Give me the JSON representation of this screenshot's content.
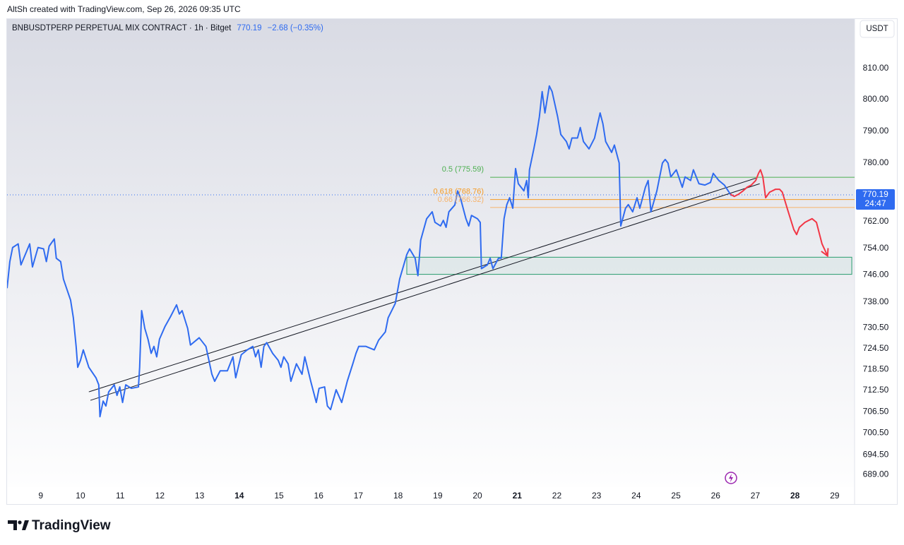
{
  "chart_data": {
    "type": "line",
    "credit": "AltSh created with TradingView.com, Sep 26, 2026 09:35 UTC",
    "title": "BNBUSDTPERP PERPETUAL MIX CONTRACT · 1h · Bitget",
    "last_price": 770.19,
    "change_label": "−2.68 (−0.35%)",
    "countdown": "24:47",
    "currency": "USDT",
    "brand": "TradingView",
    "ylog": true,
    "xlim": [
      8.15,
      29.5
    ],
    "ylim": [
      681,
      826
    ],
    "xticks": [
      9,
      10,
      11,
      12,
      13,
      14,
      15,
      16,
      17,
      18,
      19,
      20,
      21,
      22,
      23,
      24,
      25,
      26,
      27,
      28,
      29
    ],
    "xticks_bold": [
      14,
      21,
      28
    ],
    "yticks": [
      {
        "value": 810,
        "label": "810.00"
      },
      {
        "value": 800,
        "label": "800.00"
      },
      {
        "value": 790,
        "label": "790.00"
      },
      {
        "value": 780,
        "label": "780.00"
      },
      {
        "value": 762,
        "label": "762.00"
      },
      {
        "value": 754,
        "label": "754.00"
      },
      {
        "value": 746,
        "label": "746.00"
      },
      {
        "value": 738,
        "label": "738.00"
      },
      {
        "value": 730.5,
        "label": "730.50"
      },
      {
        "value": 724.5,
        "label": "724.50"
      },
      {
        "value": 718.5,
        "label": "718.50"
      },
      {
        "value": 712.5,
        "label": "712.50"
      },
      {
        "value": 706.5,
        "label": "706.50"
      },
      {
        "value": 700.5,
        "label": "700.50"
      },
      {
        "value": 694.5,
        "label": "694.50"
      },
      {
        "value": 689,
        "label": "689.00"
      }
    ],
    "series": [
      {
        "color": "#2f6bf0",
        "x": [
          8.15,
          8.22,
          8.29,
          8.43,
          8.5,
          8.72,
          8.79,
          8.93,
          9.07,
          9.14,
          9.21,
          9.34,
          9.39,
          9.5,
          9.57,
          9.75,
          9.82,
          9.89,
          9.93,
          10.0,
          10.07,
          10.21,
          10.39,
          10.46,
          10.49,
          10.57,
          10.64,
          10.71,
          10.85,
          10.92,
          10.99,
          11.06,
          11.14,
          11.28,
          11.46,
          11.49,
          11.54,
          11.62,
          11.7,
          11.78,
          11.85,
          11.92,
          11.99,
          12.13,
          12.27,
          12.42,
          12.49,
          12.56,
          12.7,
          12.77,
          12.99,
          13.16,
          13.31,
          13.38,
          13.52,
          13.7,
          13.84,
          13.91,
          14.05,
          14.2,
          14.34,
          14.41,
          14.48,
          14.55,
          14.62,
          14.69,
          14.84,
          14.98,
          15.05,
          15.12,
          15.23,
          15.3,
          15.44,
          15.58,
          15.65,
          15.8,
          15.94,
          16.01,
          16.15,
          16.22,
          16.3,
          16.44,
          16.58,
          16.72,
          16.86,
          16.94,
          17.01,
          17.19,
          17.4,
          17.51,
          17.68,
          17.75,
          17.93,
          18.04,
          18.22,
          18.29,
          18.43,
          18.5,
          18.57,
          18.72,
          18.86,
          18.93,
          19.07,
          19.14,
          19.21,
          19.28,
          19.43,
          19.5,
          19.57,
          19.71,
          19.78,
          19.85,
          20.0,
          20.07,
          20.1,
          20.25,
          20.32,
          20.39,
          20.53,
          20.6,
          20.67,
          20.74,
          20.81,
          20.89,
          20.96,
          21.03,
          21.17,
          21.24,
          21.28,
          21.31,
          21.42,
          21.49,
          21.56,
          21.63,
          21.7,
          21.81,
          21.88,
          22.02,
          22.1,
          22.24,
          22.31,
          22.38,
          22.52,
          22.59,
          22.67,
          22.81,
          22.95,
          23.09,
          23.16,
          23.23,
          23.38,
          23.45,
          23.57,
          23.61,
          23.73,
          23.8,
          23.91,
          24.02,
          24.09,
          24.23,
          24.3,
          24.37,
          24.52,
          24.66,
          24.73,
          24.8,
          24.87,
          25.01,
          25.16,
          25.23,
          25.37,
          25.44,
          25.58,
          25.73,
          25.87,
          25.94,
          26.08,
          26.22,
          26.37,
          26.4
        ],
        "values": [
          742.1,
          750.0,
          754.2,
          755.3,
          749.0,
          755.3,
          748.4,
          754.2,
          753.8,
          750.0,
          754.6,
          756.8,
          751.0,
          750.0,
          744.8,
          738.6,
          733.4,
          725.1,
          719.1,
          721.1,
          724.1,
          719.1,
          716.1,
          714.1,
          705.1,
          709.5,
          708.1,
          712.1,
          714.1,
          711.1,
          713.5,
          709.1,
          714.1,
          713.1,
          713.5,
          719.1,
          735.5,
          730.3,
          727.2,
          723.1,
          725.1,
          722.1,
          727.2,
          730.9,
          733.8,
          737.2,
          734.5,
          735.5,
          730.3,
          725.5,
          727.6,
          725.1,
          717.1,
          715.1,
          718.1,
          718.1,
          722.1,
          716.1,
          722.7,
          724.1,
          725.1,
          722.1,
          724.1,
          719.1,
          725.1,
          726.2,
          723.1,
          721.1,
          719.1,
          722.1,
          720.1,
          715.1,
          720.1,
          717.1,
          722.1,
          715.1,
          709.1,
          713.1,
          713.5,
          708.1,
          707.1,
          712.7,
          709.1,
          715.1,
          720.1,
          723.1,
          725.1,
          725.1,
          724.1,
          726.9,
          729.3,
          733.4,
          737.6,
          744.8,
          752.1,
          753.8,
          751.0,
          745.8,
          756.4,
          762.9,
          765.0,
          761.8,
          760.7,
          762.4,
          760.3,
          765.0,
          767.1,
          771.4,
          769.3,
          762.9,
          760.7,
          763.9,
          762.9,
          761.8,
          747.9,
          749.0,
          751.0,
          747.9,
          751.0,
          751.0,
          762.9,
          767.2,
          769.3,
          766.1,
          778.3,
          773.6,
          771.4,
          774.6,
          769.3,
          777.9,
          784.4,
          788.9,
          794.5,
          802.5,
          795.7,
          804.3,
          802.5,
          794.5,
          788.9,
          786.7,
          784.4,
          787.8,
          787.8,
          791.1,
          786.7,
          784.4,
          787.8,
          795.7,
          792.3,
          786.7,
          783.3,
          785.6,
          780.0,
          760.7,
          766.1,
          767.2,
          765.0,
          769.3,
          766.1,
          772.5,
          774.6,
          765.0,
          771.4,
          780.0,
          781.1,
          780.0,
          775.7,
          777.9,
          772.5,
          775.7,
          774.6,
          777.9,
          773.6,
          773.2,
          774.0,
          776.8,
          774.6,
          773.2,
          770.4,
          769.9
        ]
      },
      {
        "color": "#f23645",
        "x": [
          26.37,
          26.47,
          26.58,
          26.69,
          26.79,
          26.9,
          27.01,
          27.08,
          27.13,
          27.19,
          27.26,
          27.36,
          27.51,
          27.61,
          27.68,
          27.83,
          27.97,
          28.04,
          28.11,
          28.25,
          28.43,
          28.54,
          28.68,
          28.82
        ],
        "values": [
          770.4,
          769.7,
          770.4,
          771.4,
          772.5,
          773.2,
          774.6,
          776.8,
          777.9,
          775.7,
          769.3,
          771.0,
          771.9,
          771.9,
          771.0,
          765.0,
          759.6,
          758.1,
          760.3,
          761.8,
          762.9,
          761.8,
          755.3,
          751.7
        ]
      }
    ],
    "trendlines": [
      {
        "color": "#131722",
        "x": [
          10.21,
          27.01
        ],
        "values": [
          712.1,
          775.3
        ]
      },
      {
        "color": "#131722",
        "x": [
          10.25,
          27.11
        ],
        "values": [
          709.7,
          773.6
        ]
      }
    ],
    "fib_levels": [
      {
        "label": "0.5 (775.59)",
        "price": 775.59,
        "color": "#4caf50"
      },
      {
        "label": "0.618 (768.76)",
        "price": 768.76,
        "color": "#f59a23"
      },
      {
        "label": "0.66 (766.32)",
        "price": 766.32,
        "color": "#f7b36b"
      }
    ],
    "fib_start": 20.32,
    "zone": {
      "color": "#2a9d6f",
      "x": [
        18.22,
        29.43
      ],
      "values": [
        746.2,
        751.3
      ]
    }
  }
}
